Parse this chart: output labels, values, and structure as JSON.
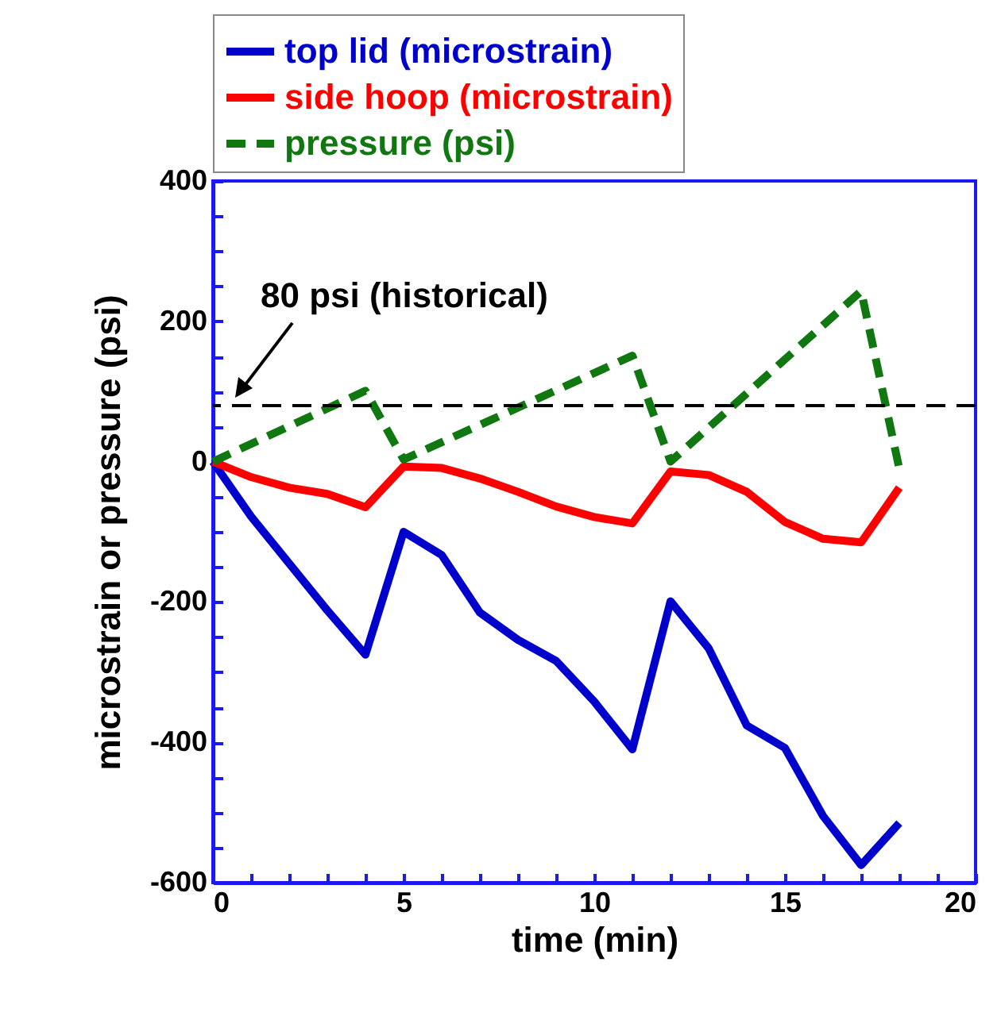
{
  "chart_data": {
    "type": "line",
    "xlabel": "time (min)",
    "ylabel": "microstrain or pressure (psi)",
    "x": [
      0,
      1,
      2,
      3,
      4,
      5,
      6,
      7,
      8,
      9,
      10,
      11,
      12,
      13,
      14,
      15,
      16,
      17,
      18
    ],
    "series": [
      {
        "name": "top lid (microstrain)",
        "color": "#0000cc",
        "line_style": "solid",
        "values": [
          0,
          -78,
          -145,
          -212,
          -275,
          -100,
          -133,
          -215,
          -254,
          -284,
          -342,
          -410,
          -199,
          -266,
          -376,
          -408,
          -505,
          -575,
          -515
        ]
      },
      {
        "name": "side hoop (microstrain)",
        "color": "#ff0000",
        "line_style": "solid",
        "values": [
          0,
          -22,
          -37,
          -46,
          -65,
          -7,
          -9,
          -24,
          -43,
          -64,
          -79,
          -88,
          -14,
          -19,
          -43,
          -86,
          -110,
          -115,
          -37
        ]
      },
      {
        "name": "pressure (psi)",
        "color": "#117711",
        "line_style": "dashed",
        "x": [
          0,
          4,
          5,
          11,
          12,
          17,
          18
        ],
        "values": [
          0,
          101,
          3,
          151,
          0,
          243,
          -10
        ]
      }
    ],
    "xlim": [
      0,
      20
    ],
    "ylim": [
      -600,
      400
    ],
    "xticks": [
      0,
      {
        "value": 1,
        "label": null
      },
      {
        "value": 2,
        "label": null
      },
      {
        "value": 3,
        "label": null
      },
      {
        "value": 4,
        "label": null
      },
      5,
      {
        "value": 6,
        "label": null
      },
      {
        "value": 7,
        "label": null
      },
      {
        "value": 8,
        "label": null
      },
      {
        "value": 9,
        "label": null
      },
      10,
      {
        "value": 11,
        "label": null
      },
      {
        "value": 12,
        "label": null
      },
      {
        "value": 13,
        "label": null
      },
      {
        "value": 14,
        "label": null
      },
      15,
      {
        "value": 16,
        "label": null
      },
      {
        "value": 17,
        "label": null
      },
      {
        "value": 18,
        "label": null
      },
      {
        "value": 19,
        "label": null
      },
      20
    ],
    "yticks": [
      -600,
      {
        "value": -550,
        "label": null
      },
      {
        "value": -500,
        "label": null
      },
      {
        "value": -450,
        "label": null
      },
      -400,
      {
        "value": -350,
        "label": null
      },
      {
        "value": -300,
        "label": null
      },
      {
        "value": -250,
        "label": null
      },
      -200,
      {
        "value": -150,
        "label": null
      },
      {
        "value": -100,
        "label": null
      },
      {
        "value": -50,
        "label": null
      },
      0,
      {
        "value": 50,
        "label": null
      },
      {
        "value": 100,
        "label": null
      },
      {
        "value": 150,
        "label": null
      },
      200,
      {
        "value": 250,
        "label": null
      },
      {
        "value": 300,
        "label": null
      },
      {
        "value": 350,
        "label": null
      },
      400
    ],
    "ref_lines": [
      {
        "axis": "y",
        "value": 80,
        "color": "#000000",
        "line_style": "dashed"
      }
    ],
    "annotations": [
      {
        "text": "80 psi (historical)",
        "x": 0.5,
        "y": 80
      }
    ],
    "legend": "top"
  }
}
